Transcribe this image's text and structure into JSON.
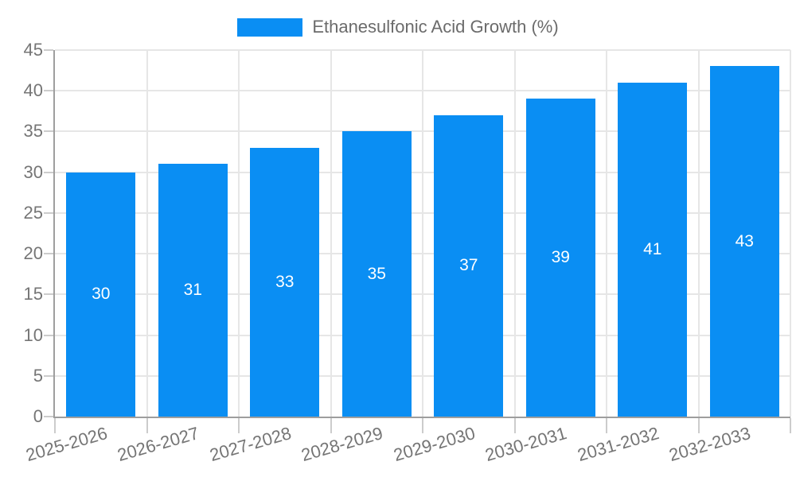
{
  "chart_data": {
    "type": "bar",
    "title": "Ethanesulfonic Acid Growth (%)",
    "legend": {
      "label": "Ethanesulfonic Acid Growth (%)",
      "position": "top-center"
    },
    "categories": [
      "2025-2026",
      "2026-2027",
      "2027-2028",
      "2028-2029",
      "2029-2030",
      "2030-2031",
      "2031-2032",
      "2032-2033"
    ],
    "values": [
      30,
      31,
      33,
      35,
      37,
      39,
      41,
      43
    ],
    "value_labels": [
      "30",
      "31",
      "33",
      "35",
      "37",
      "39",
      "41",
      "43"
    ],
    "y_tick_labels": [
      "0",
      "5",
      "10",
      "15",
      "20",
      "25",
      "30",
      "35",
      "40",
      "45"
    ],
    "xlabel": "",
    "ylabel": "",
    "ylim": [
      0,
      45
    ],
    "ytick_step": 5,
    "grid": true,
    "colors": {
      "bar": "#0a8ef3",
      "bar_value_text": "#ffffff",
      "grid": "#e6e6e6",
      "axis": "#9e9e9e",
      "tick_mark": "#cccccc",
      "tick_text": "#757575",
      "legend_text": "#6b6b6b",
      "background": "#ffffff"
    }
  }
}
